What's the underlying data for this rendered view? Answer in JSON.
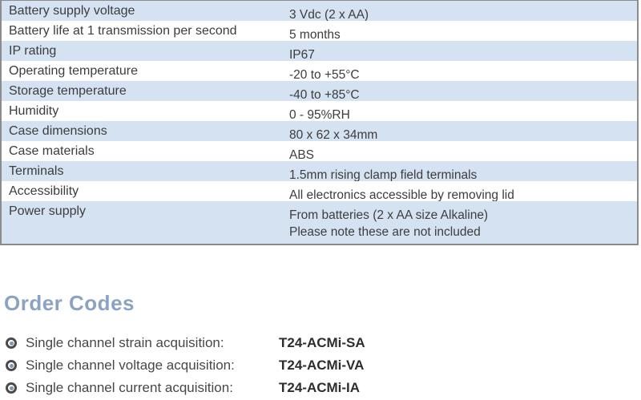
{
  "table": {
    "rows": [
      {
        "label": "Battery supply voltage",
        "value": "3 Vdc (2 x AA)"
      },
      {
        "label": "Battery life at 1 transmission per second",
        "value": "5 months"
      },
      {
        "label": "IP rating",
        "value": "IP67"
      },
      {
        "label": "Operating temperature",
        "value": "-20 to +55°C"
      },
      {
        "label": "Storage temperature",
        "value": "-40 to +85°C"
      },
      {
        "label": "Humidity",
        "value": "0 - 95%RH"
      },
      {
        "label": "Case dimensions",
        "value": "80 x 62 x 34mm"
      },
      {
        "label": "Case materials",
        "value": "ABS"
      },
      {
        "label": "Terminals",
        "value": "1.5mm rising clamp field terminals"
      },
      {
        "label": "Accessibility",
        "value": "All electronics accessible by removing lid"
      },
      {
        "label": "Power supply",
        "value": [
          "From batteries (2 x AA size Alkaline)",
          "Please note these are not included"
        ]
      }
    ]
  },
  "order_codes": {
    "heading": "Order Codes",
    "items": [
      {
        "label": "Single channel strain acquisition:",
        "code": "T24-ACMi-SA"
      },
      {
        "label": "Single channel voltage acquisition:",
        "code": "T24-ACMi-VA"
      },
      {
        "label": "Single channel current acquisition:",
        "code": "T24-ACMi-IA"
      }
    ]
  },
  "colors": {
    "row_alt_blue": "#d5e2f2",
    "table_border": "#8c8c8c",
    "body_text": "#3d3d3d",
    "heading_blue": "#8ba3c3",
    "bullet_ring": "#4a4a4a",
    "bullet_dot": "#8095b3",
    "code_text": "#2d2d2d"
  }
}
